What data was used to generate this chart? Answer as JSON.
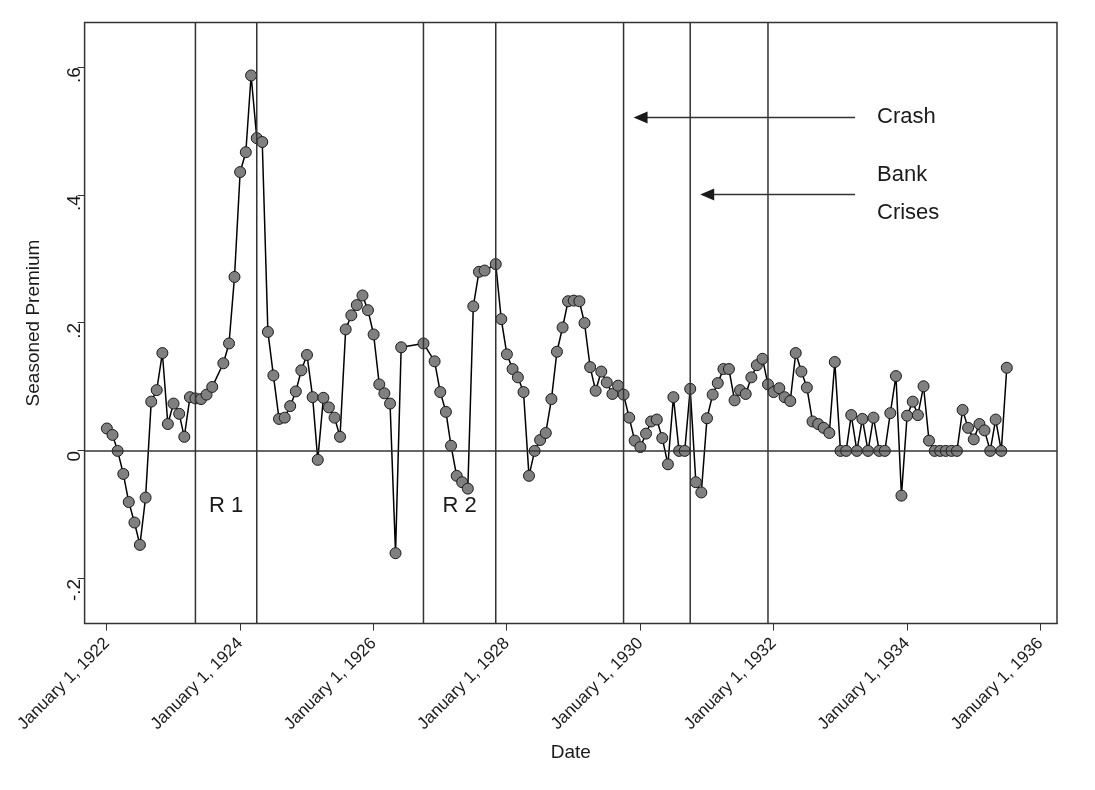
{
  "chart_data": {
    "type": "line",
    "xlabel": "Date",
    "ylabel": "Seasoned Premium",
    "marker": "circle",
    "legend": false,
    "grid": false,
    "xlim": [
      "1921-09",
      "1936-04"
    ],
    "xticks": [
      {
        "value": "1922-01-01",
        "label": "January 1, 1922"
      },
      {
        "value": "1924-01-01",
        "label": "January 1, 1924"
      },
      {
        "value": "1926-01-01",
        "label": "January 1, 1926"
      },
      {
        "value": "1928-01-01",
        "label": "January 1, 1928"
      },
      {
        "value": "1930-01-01",
        "label": "January 1, 1930"
      },
      {
        "value": "1932-01-01",
        "label": "January 1, 1932"
      },
      {
        "value": "1934-01-01",
        "label": "January 1, 1934"
      },
      {
        "value": "1936-01-01",
        "label": "January 1, 1936"
      }
    ],
    "ylim": [
      -0.27,
      0.67
    ],
    "yticks": [
      {
        "value": -0.2,
        "label": "-.2"
      },
      {
        "value": 0,
        "label": "0"
      },
      {
        "value": 0.2,
        "label": ".2"
      },
      {
        "value": 0.4,
        "label": ".4"
      },
      {
        "value": 0.6,
        "label": ".6"
      }
    ],
    "series": [
      {
        "color": "#808080",
        "x": [
          "1922-01",
          "1922-02",
          "1922-03",
          "1922-04",
          "1922-05",
          "1922-06",
          "1922-07",
          "1922-08",
          "1922-09",
          "1922-10",
          "1922-11",
          "1922-12",
          "1923-01",
          "1923-02",
          "1923-03",
          "1923-04",
          "1923-05",
          "1923-06",
          "1923-07",
          "1923-08",
          "1923-10",
          "1923-11",
          "1923-12",
          "1924-01",
          "1924-02",
          "1924-03",
          "1924-04",
          "1924-05",
          "1924-06",
          "1924-07",
          "1924-08",
          "1924-09",
          "1924-10",
          "1924-11",
          "1924-12",
          "1925-01",
          "1925-02",
          "1925-03",
          "1925-04",
          "1925-05",
          "1925-06",
          "1925-07",
          "1925-08",
          "1925-09",
          "1925-10",
          "1925-11",
          "1925-12",
          "1926-01",
          "1926-02",
          "1926-03",
          "1926-04",
          "1926-05",
          "1926-06",
          "1926-10",
          "1926-12",
          "1927-01",
          "1927-02",
          "1927-03",
          "1927-04",
          "1927-05",
          "1927-06",
          "1927-07",
          "1927-08",
          "1927-09",
          "1927-11",
          "1927-12",
          "1928-01",
          "1928-02",
          "1928-03",
          "1928-04",
          "1928-05",
          "1928-06",
          "1928-07",
          "1928-08",
          "1928-09",
          "1928-10",
          "1928-11",
          "1928-12",
          "1929-01",
          "1929-02",
          "1929-03",
          "1929-04",
          "1929-05",
          "1929-06",
          "1929-07",
          "1929-08",
          "1929-09",
          "1929-10",
          "1929-11",
          "1929-12",
          "1930-01",
          "1930-02",
          "1930-03",
          "1930-04",
          "1930-05",
          "1930-06",
          "1930-07",
          "1930-08",
          "1930-09",
          "1930-10",
          "1930-11",
          "1930-12",
          "1931-01",
          "1931-02",
          "1931-03",
          "1931-04",
          "1931-05",
          "1931-06",
          "1931-07",
          "1931-08",
          "1931-09",
          "1931-10",
          "1931-11",
          "1931-12",
          "1932-01",
          "1932-02",
          "1932-03",
          "1932-04",
          "1932-05",
          "1932-06",
          "1932-07",
          "1932-08",
          "1932-09",
          "1932-10",
          "1932-11",
          "1932-12",
          "1933-01",
          "1933-02",
          "1933-03",
          "1933-04",
          "1933-05",
          "1933-06",
          "1933-07",
          "1933-08",
          "1933-09",
          "1933-10",
          "1933-11",
          "1933-12",
          "1934-01",
          "1934-02",
          "1934-03",
          "1934-04",
          "1934-05",
          "1934-06",
          "1934-07",
          "1934-08",
          "1934-09",
          "1934-10",
          "1934-11",
          "1934-12",
          "1935-01",
          "1935-02",
          "1935-03",
          "1935-04",
          "1935-05",
          "1935-06",
          "1935-07"
        ],
        "values": [
          0.035,
          0.025,
          0,
          -0.036,
          -0.08,
          -0.112,
          -0.147,
          -0.073,
          0.077,
          0.095,
          0.153,
          0.042,
          0.074,
          0.058,
          0.022,
          0.084,
          0.082,
          0.081,
          0.088,
          0.1,
          0.137,
          0.168,
          0.272,
          0.436,
          0.467,
          0.587,
          0.489,
          0.483,
          0.186,
          0.118,
          0.05,
          0.052,
          0.07,
          0.093,
          0.126,
          0.15,
          0.084,
          -0.014,
          0.083,
          0.068,
          0.052,
          0.022,
          0.19,
          0.212,
          0.228,
          0.243,
          0.22,
          0.182,
          0.104,
          0.09,
          0.074,
          -0.16,
          0.162,
          0.168,
          0.14,
          0.092,
          0.061,
          0.008,
          -0.039,
          -0.049,
          -0.059,
          0.226,
          0.28,
          0.282,
          0.292,
          0.206,
          0.151,
          0.128,
          0.115,
          0.092,
          -0.039,
          0,
          0.017,
          0.028,
          0.081,
          0.155,
          0.193,
          0.234,
          0.235,
          0.234,
          0.2,
          0.131,
          0.094,
          0.124,
          0.107,
          0.089,
          0.102,
          0.088,
          0.052,
          0.016,
          0.006,
          0.027,
          0.046,
          0.049,
          0.02,
          -0.021,
          0.084,
          0,
          0,
          0.097,
          -0.049,
          -0.065,
          0.051,
          0.088,
          0.106,
          0.128,
          0.128,
          0.079,
          0.095,
          0.089,
          0.115,
          0.134,
          0.144,
          0.104,
          0.092,
          0.098,
          0.084,
          0.078,
          0.153,
          0.124,
          0.099,
          0.046,
          0.042,
          0.036,
          0.028,
          0.139,
          0,
          0,
          0.056,
          0,
          0.05,
          0,
          0.052,
          0,
          0,
          0.059,
          0.117,
          -0.07,
          0.055,
          0.077,
          0.056,
          0.101,
          0.016,
          0,
          0,
          0,
          0,
          0,
          0.064,
          0.036,
          0.018,
          0.042,
          0.032,
          0,
          0.049,
          0,
          0.13
        ]
      }
    ],
    "ref_lines": [
      {
        "axis": "y",
        "value": 0
      },
      {
        "axis": "x",
        "value": "1923-05"
      },
      {
        "axis": "x",
        "value": "1924-04"
      },
      {
        "axis": "x",
        "value": "1926-10"
      },
      {
        "axis": "x",
        "value": "1927-11"
      },
      {
        "axis": "x",
        "value": "1929-10"
      },
      {
        "axis": "x",
        "value": "1930-10"
      },
      {
        "axis": "x",
        "value": "1931-12"
      }
    ],
    "annotations": [
      "R 1",
      "R 2",
      "Crash",
      "Bank Crises"
    ]
  }
}
